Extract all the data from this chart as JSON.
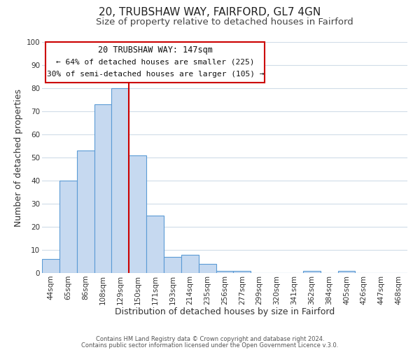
{
  "title": "20, TRUBSHAW WAY, FAIRFORD, GL7 4GN",
  "subtitle": "Size of property relative to detached houses in Fairford",
  "xlabel": "Distribution of detached houses by size in Fairford",
  "ylabel": "Number of detached properties",
  "bar_labels": [
    "44sqm",
    "65sqm",
    "86sqm",
    "108sqm",
    "129sqm",
    "150sqm",
    "171sqm",
    "193sqm",
    "214sqm",
    "235sqm",
    "256sqm",
    "277sqm",
    "299sqm",
    "320sqm",
    "341sqm",
    "362sqm",
    "384sqm",
    "405sqm",
    "426sqm",
    "447sqm",
    "468sqm"
  ],
  "bar_values": [
    6,
    40,
    53,
    73,
    80,
    51,
    25,
    7,
    8,
    4,
    1,
    1,
    0,
    0,
    0,
    1,
    0,
    1,
    0,
    0,
    0
  ],
  "bar_color": "#c6d9f0",
  "bar_edge_color": "#5b9bd5",
  "vline_x_index": 4,
  "vline_color": "#cc0000",
  "ylim": [
    0,
    100
  ],
  "annotation_title": "20 TRUBSHAW WAY: 147sqm",
  "annotation_line1": "← 64% of detached houses are smaller (225)",
  "annotation_line2": "30% of semi-detached houses are larger (105) →",
  "annotation_box_color": "#ffffff",
  "annotation_box_edge": "#cc0000",
  "footer1": "Contains HM Land Registry data © Crown copyright and database right 2024.",
  "footer2": "Contains public sector information licensed under the Open Government Licence v.3.0.",
  "background_color": "#ffffff",
  "grid_color": "#d0dce8",
  "title_fontsize": 11,
  "subtitle_fontsize": 9.5,
  "axis_label_fontsize": 9,
  "tick_fontsize": 7.5,
  "annotation_title_fontsize": 8.5,
  "annotation_text_fontsize": 8,
  "footer_fontsize": 6
}
